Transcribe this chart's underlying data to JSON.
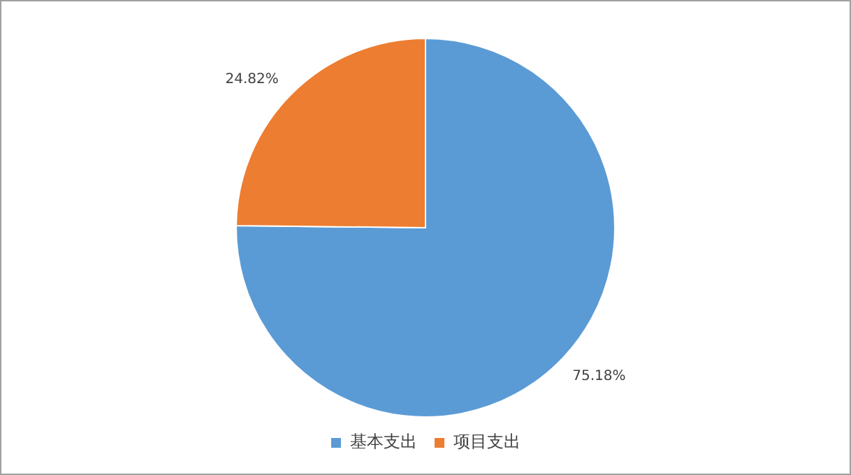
{
  "chart_data": {
    "type": "pie",
    "categories": [
      "基本支出",
      "项目支出"
    ],
    "values": [
      75.18,
      24.82
    ],
    "colors": [
      "#5b9bd5",
      "#ed7d31"
    ],
    "value_labels": [
      "75.18%",
      "24.82%"
    ],
    "legend": "bottom"
  }
}
